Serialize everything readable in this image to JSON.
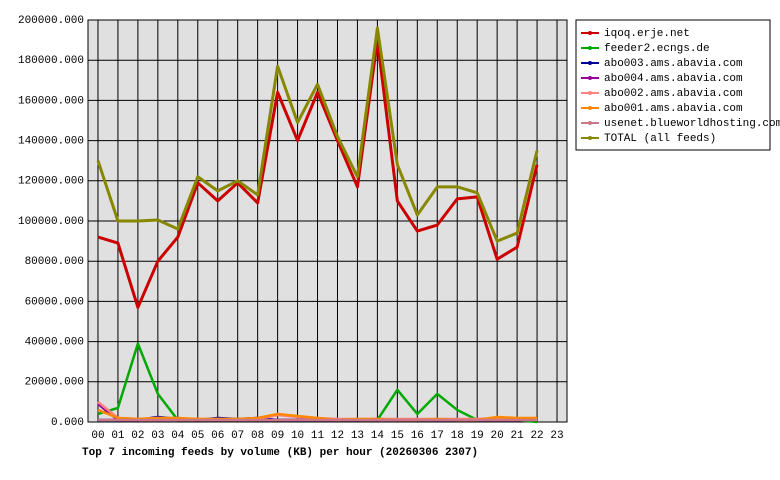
{
  "chart_data": {
    "type": "line",
    "title": "Top 7 incoming feeds by volume (KB) per hour (20260306 2307)",
    "categories": [
      "00",
      "01",
      "02",
      "03",
      "04",
      "05",
      "06",
      "07",
      "08",
      "09",
      "10",
      "11",
      "12",
      "13",
      "14",
      "15",
      "16",
      "17",
      "18",
      "19",
      "20",
      "21",
      "22",
      "23"
    ],
    "ylim": [
      0,
      200000
    ],
    "yticks": [
      {
        "value": 0,
        "label": "0.000"
      },
      {
        "value": 20000,
        "label": "20000.000"
      },
      {
        "value": 40000,
        "label": "40000.000"
      },
      {
        "value": 60000,
        "label": "60000.000"
      },
      {
        "value": 80000,
        "label": "80000.000"
      },
      {
        "value": 100000,
        "label": "100000.000"
      },
      {
        "value": 120000,
        "label": "120000.000"
      },
      {
        "value": 140000,
        "label": "140000.000"
      },
      {
        "value": 160000,
        "label": "160000.000"
      },
      {
        "value": 180000,
        "label": "180000.000"
      },
      {
        "value": 200000,
        "label": "200000.000"
      }
    ],
    "grid": true,
    "legend": "right",
    "series": [
      {
        "name": "iqoq.erje.net",
        "color": "#cc0000",
        "values": [
          92000,
          89000,
          57000,
          80000,
          92000,
          119000,
          110000,
          119000,
          109000,
          164000,
          140000,
          164000,
          140000,
          117000,
          190000,
          110000,
          95000,
          98000,
          111000,
          112000,
          81000,
          87000,
          128000,
          null
        ]
      },
      {
        "name": "feeder2.ecngs.de",
        "color": "#00aa00",
        "values": [
          4000,
          7000,
          39000,
          14000,
          1000,
          1000,
          1000,
          1000,
          1000,
          1000,
          1000,
          1000,
          1000,
          1000,
          1000,
          16000,
          4000,
          14000,
          6000,
          1000,
          1000,
          1000,
          0,
          null
        ]
      },
      {
        "name": "abo003.ams.abavia.com",
        "color": "#000099",
        "values": [
          1000,
          1000,
          1000,
          2500,
          1500,
          1000,
          2000,
          1500,
          2000,
          1000,
          1000,
          1000,
          1000,
          1000,
          1500,
          1000,
          1000,
          1000,
          1000,
          1000,
          1000,
          1000,
          1000,
          null
        ]
      },
      {
        "name": "abo004.ams.abavia.com",
        "color": "#990099",
        "values": [
          9000,
          1000,
          1000,
          1000,
          1000,
          1000,
          1000,
          1000,
          1000,
          1000,
          1000,
          1000,
          1000,
          1000,
          1000,
          1000,
          1000,
          1000,
          1000,
          1000,
          1000,
          1000,
          1000,
          null
        ]
      },
      {
        "name": "abo002.ams.abavia.com",
        "color": "#ff8080",
        "values": [
          10000,
          2000,
          1500,
          2000,
          1500,
          1500,
          1500,
          1500,
          1500,
          3500,
          2500,
          2000,
          1500,
          1500,
          1500,
          1500,
          1500,
          1500,
          1500,
          1500,
          2000,
          1500,
          1500,
          null
        ]
      },
      {
        "name": "abo001.ams.abavia.com",
        "color": "#ff8800",
        "values": [
          6000,
          2000,
          1500,
          2000,
          2000,
          1500,
          1500,
          1500,
          2000,
          4000,
          3000,
          2000,
          1000,
          1500,
          1500,
          1000,
          1000,
          1500,
          1000,
          1000,
          2500,
          2000,
          2000,
          null
        ]
      },
      {
        "name": "usenet.blueworldhosting.com",
        "color": "#cc7788",
        "values": [
          1000,
          1000,
          1000,
          1000,
          1000,
          1000,
          1000,
          1000,
          1000,
          1000,
          1000,
          1000,
          1000,
          1000,
          1000,
          1000,
          1000,
          1000,
          1000,
          1000,
          1000,
          1000,
          1000,
          null
        ]
      },
      {
        "name": "TOTAL (all feeds)",
        "color": "#888800",
        "values": [
          130000,
          100000,
          100000,
          100500,
          96000,
          122000,
          115000,
          120000,
          113000,
          177000,
          149000,
          168000,
          142000,
          122000,
          196000,
          128000,
          103000,
          117000,
          117000,
          114000,
          90000,
          94000,
          135000,
          null
        ]
      }
    ]
  }
}
